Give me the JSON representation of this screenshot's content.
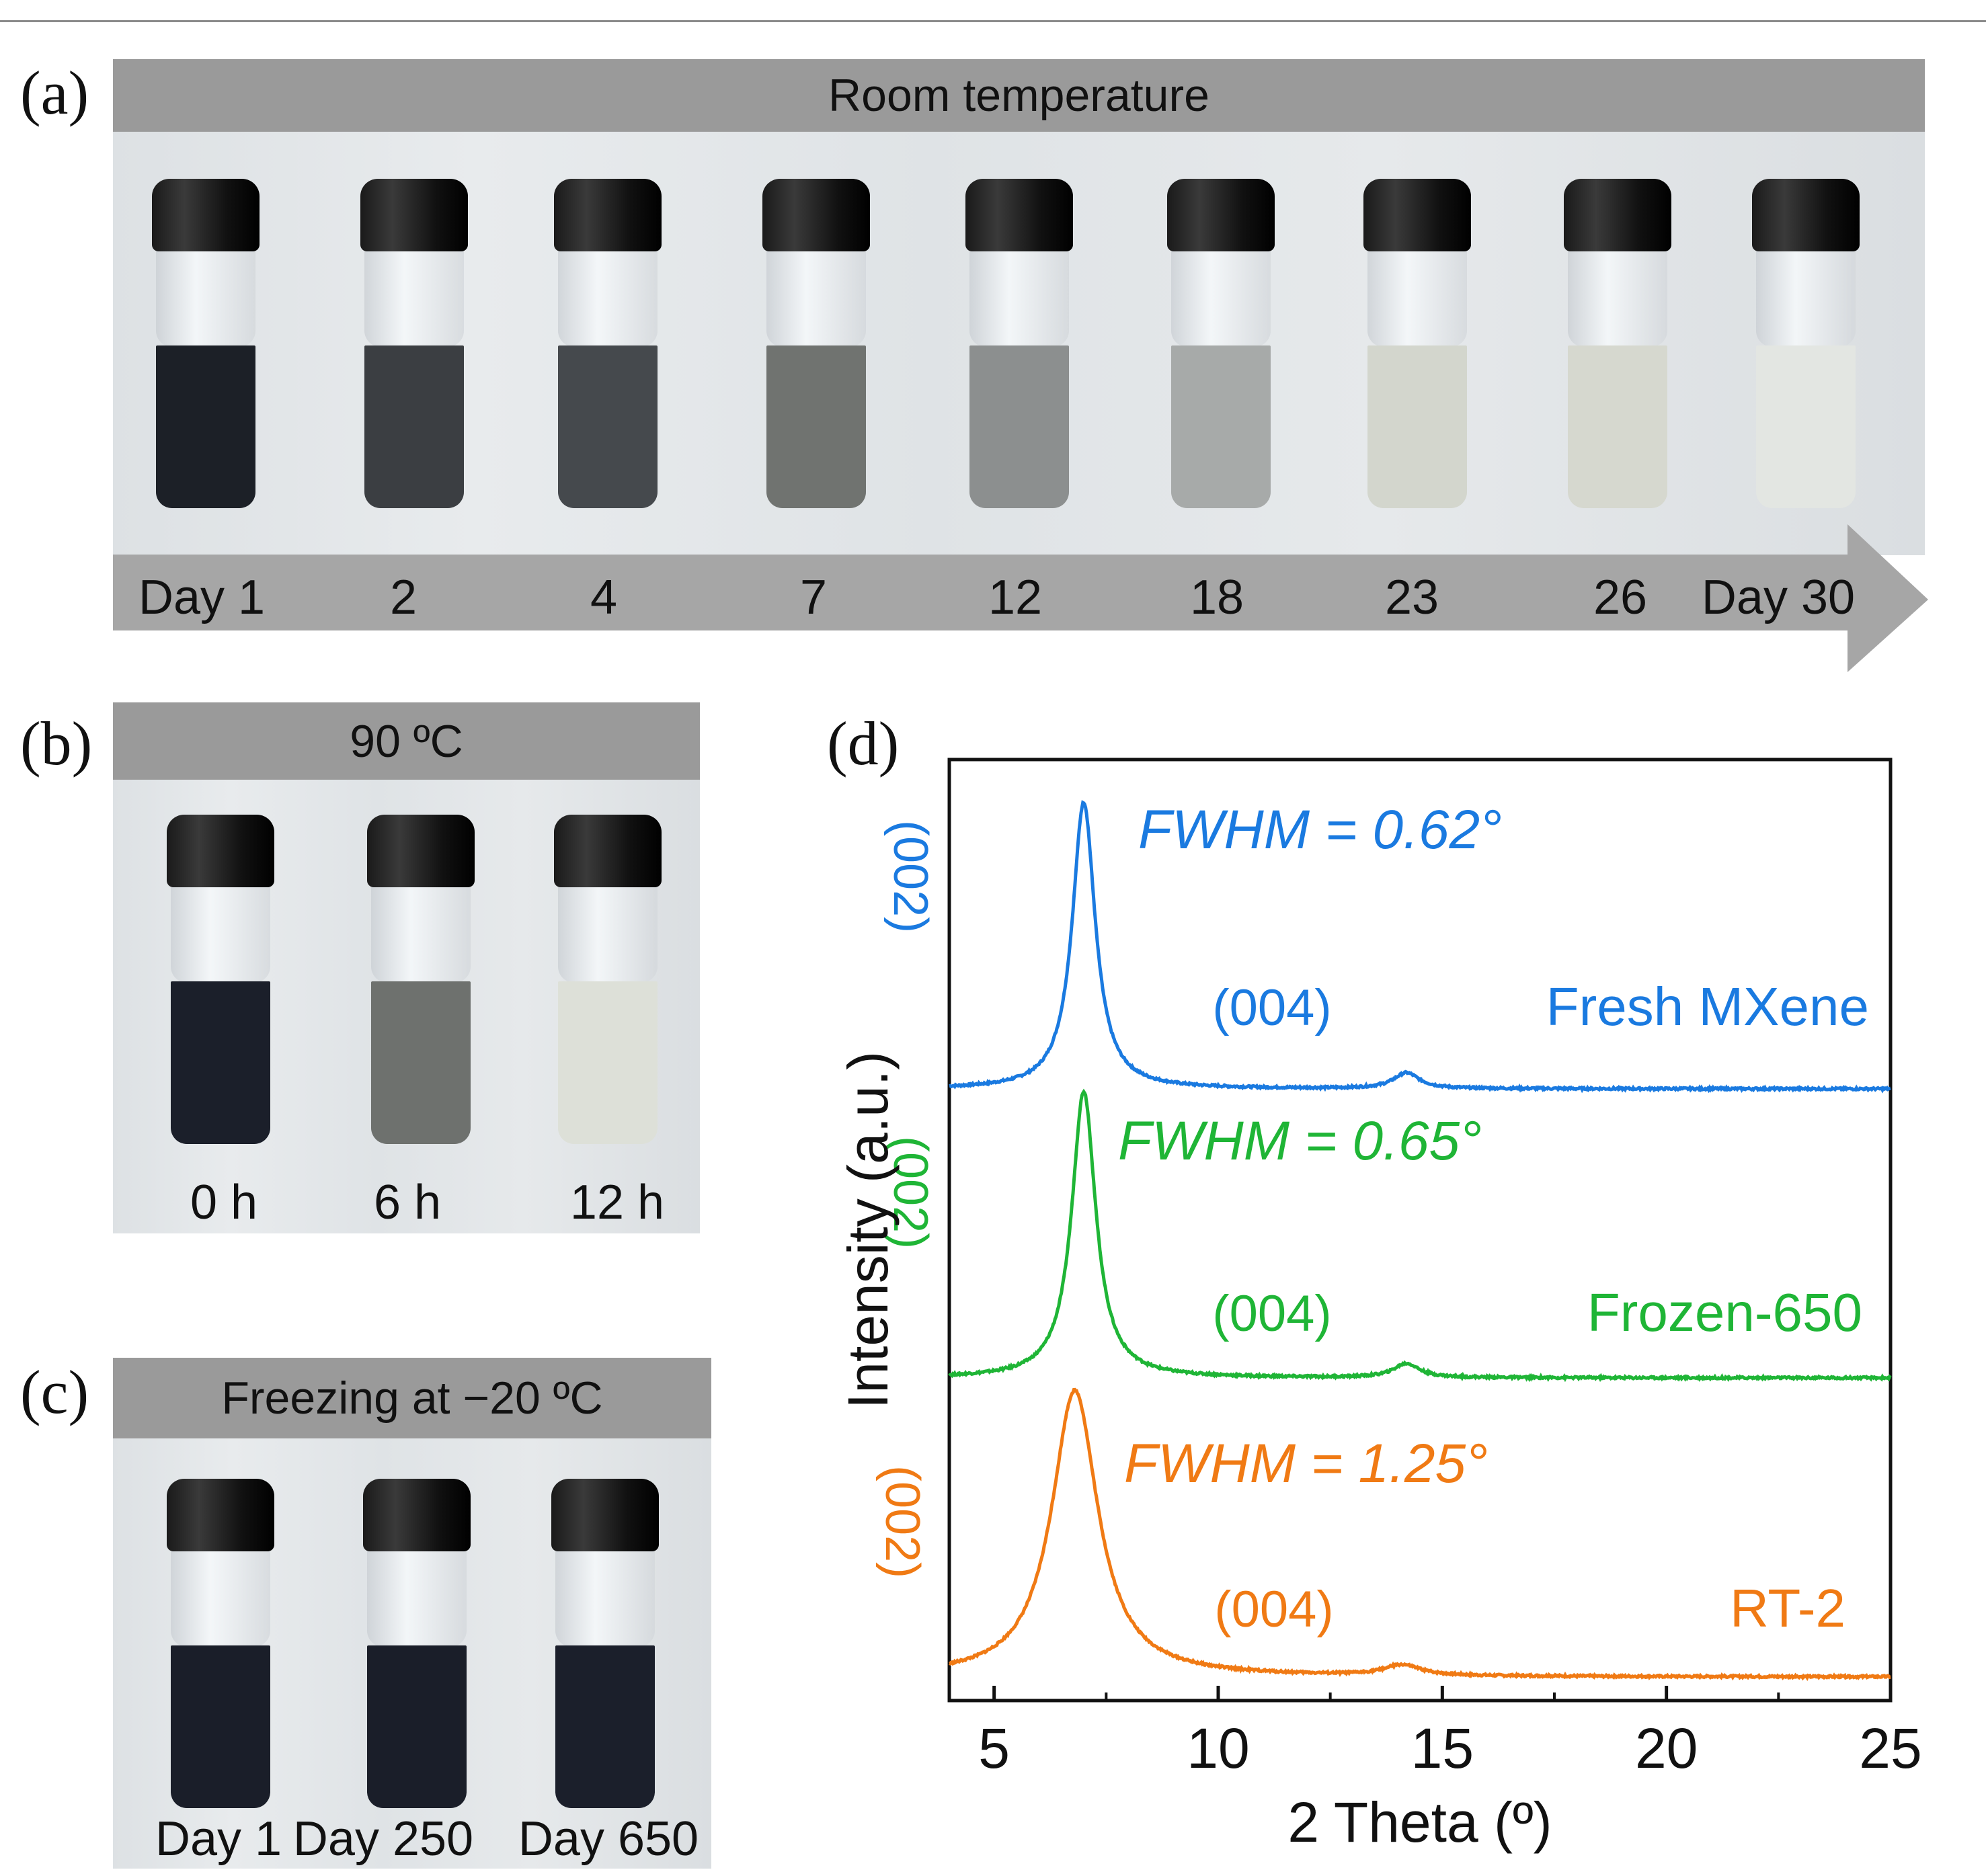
{
  "panels": {
    "a": {
      "letter": "(a)",
      "banner": "Room temperature",
      "labels": [
        "Day 1",
        "2",
        "4",
        "7",
        "12",
        "18",
        "23",
        "26",
        "Day 30"
      ],
      "liquid_colors": [
        "#1c2027",
        "#3b3e42",
        "#45494d",
        "#707370",
        "#8c8f8f",
        "#a7aaa9",
        "#d3d6cd",
        "#d6d8cf",
        "#e3e6e2"
      ]
    },
    "b": {
      "letter": "(b)",
      "banner": "90 ºC",
      "labels": [
        "0 h",
        "6 h",
        "12 h"
      ],
      "liquid_colors": [
        "#1b1f2a",
        "#6e716e",
        "#dde0d8"
      ]
    },
    "c": {
      "letter": "(c)",
      "banner": "Freezing at −20 ºC",
      "labels": [
        "Day 1",
        "Day 250",
        "Day 650"
      ],
      "liquid_colors": [
        "#1a1e29",
        "#1a1e29",
        "#1b1f2b"
      ]
    },
    "d": {
      "letter": "(d)"
    }
  },
  "chart_data": {
    "type": "line",
    "xlabel": "2 Theta (º)",
    "ylabel": "Intensity (a.u.)",
    "xlim": [
      4,
      25
    ],
    "xticks": [
      "5",
      "10",
      "15",
      "20",
      "25"
    ],
    "series": [
      {
        "name": "Fresh MXene",
        "color": "#1a7ae0",
        "peaks": [
          {
            "x": 7.0,
            "height": 0.82,
            "fwhm": 0.62
          },
          {
            "x": 14.2,
            "height": 0.045,
            "fwhm": 0.7
          }
        ],
        "fwhm_label": "FWHM = 0.62°",
        "peak_labels": [
          "(002)",
          "(004)"
        ]
      },
      {
        "name": "Frozen-650",
        "color": "#1fb536",
        "peaks": [
          {
            "x": 7.0,
            "height": 0.82,
            "fwhm": 0.65
          },
          {
            "x": 14.2,
            "height": 0.04,
            "fwhm": 0.7
          }
        ],
        "fwhm_label": "FWHM = 0.65°",
        "peak_labels": [
          "(002)",
          "(004)"
        ]
      },
      {
        "name": "RT-2",
        "color": "#f07a14",
        "peaks": [
          {
            "x": 6.8,
            "height": 0.82,
            "fwhm": 1.25
          },
          {
            "x": 14.1,
            "height": 0.03,
            "fwhm": 1.0
          }
        ],
        "fwhm_label": "FWHM = 1.25°",
        "peak_labels": [
          "(002)",
          "(004)"
        ]
      }
    ]
  }
}
